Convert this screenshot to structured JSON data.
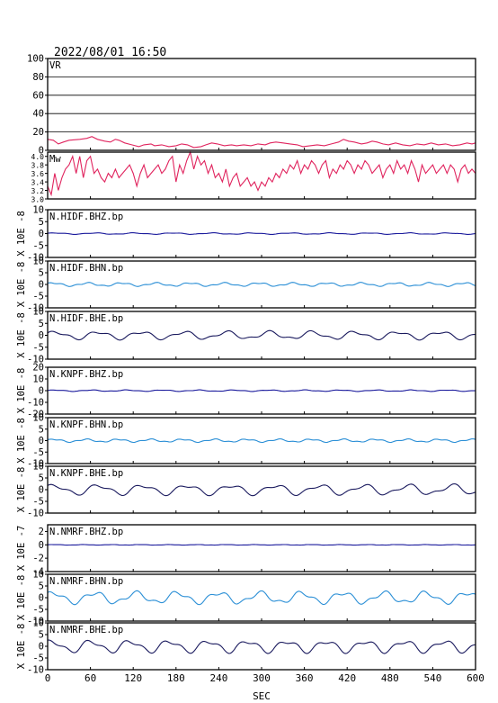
{
  "header": {
    "timestamp": "2022/08/01  16:50"
  },
  "chart_data": {
    "type": "line",
    "x_tick_labels": [
      "0",
      "60",
      "120",
      "180",
      "240",
      "300",
      "360",
      "420",
      "480",
      "540",
      "600"
    ],
    "xlabel": "SEC",
    "xlim": [
      0,
      600
    ],
    "panels": [
      {
        "name": "VR",
        "ylabel": "",
        "ylim": [
          0,
          100
        ],
        "ticks": [
          "0",
          "20",
          "40",
          "60",
          "80",
          "100"
        ],
        "grid": true,
        "color": "#e0245e",
        "series": [
          [
            0,
            12
          ],
          [
            8,
            11
          ],
          [
            15,
            7
          ],
          [
            22,
            9
          ],
          [
            30,
            11
          ],
          [
            45,
            12
          ],
          [
            55,
            13
          ],
          [
            62,
            15
          ],
          [
            70,
            12
          ],
          [
            80,
            10
          ],
          [
            88,
            9
          ],
          [
            95,
            12
          ],
          [
            100,
            11
          ],
          [
            108,
            8
          ],
          [
            118,
            6
          ],
          [
            128,
            4
          ],
          [
            135,
            6
          ],
          [
            145,
            7
          ],
          [
            150,
            5
          ],
          [
            160,
            6
          ],
          [
            170,
            4
          ],
          [
            180,
            5
          ],
          [
            188,
            7
          ],
          [
            196,
            6
          ],
          [
            205,
            3
          ],
          [
            215,
            4
          ],
          [
            222,
            6
          ],
          [
            230,
            8
          ],
          [
            238,
            7
          ],
          [
            248,
            5
          ],
          [
            258,
            6
          ],
          [
            265,
            5
          ],
          [
            275,
            6
          ],
          [
            285,
            5
          ],
          [
            295,
            7
          ],
          [
            305,
            6
          ],
          [
            312,
            8
          ],
          [
            320,
            9
          ],
          [
            330,
            8
          ],
          [
            340,
            7
          ],
          [
            350,
            6
          ],
          [
            358,
            4
          ],
          [
            368,
            5
          ],
          [
            378,
            6
          ],
          [
            388,
            5
          ],
          [
            398,
            7
          ],
          [
            408,
            9
          ],
          [
            415,
            12
          ],
          [
            422,
            10
          ],
          [
            430,
            9
          ],
          [
            440,
            7
          ],
          [
            448,
            8
          ],
          [
            455,
            10
          ],
          [
            462,
            9
          ],
          [
            470,
            7
          ],
          [
            478,
            6
          ],
          [
            488,
            8
          ],
          [
            498,
            6
          ],
          [
            508,
            5
          ],
          [
            518,
            7
          ],
          [
            528,
            6
          ],
          [
            538,
            8
          ],
          [
            548,
            6
          ],
          [
            558,
            7
          ],
          [
            568,
            5
          ],
          [
            578,
            6
          ],
          [
            588,
            8
          ],
          [
            595,
            7
          ],
          [
            600,
            8
          ]
        ]
      },
      {
        "name": "Mw",
        "ylabel": "",
        "ylim": [
          3.0,
          4.1
        ],
        "ticks": [
          "3.0",
          "3.2",
          "3.4",
          "3.6",
          "3.8",
          "4.0"
        ],
        "grid": false,
        "color": "#e0245e",
        "series": [
          [
            0,
            3.3
          ],
          [
            5,
            3.1
          ],
          [
            10,
            3.6
          ],
          [
            15,
            3.2
          ],
          [
            20,
            3.5
          ],
          [
            25,
            3.7
          ],
          [
            30,
            3.8
          ],
          [
            35,
            4.0
          ],
          [
            40,
            3.6
          ],
          [
            45,
            4.0
          ],
          [
            50,
            3.5
          ],
          [
            55,
            3.9
          ],
          [
            60,
            4.0
          ],
          [
            65,
            3.6
          ],
          [
            70,
            3.7
          ],
          [
            75,
            3.5
          ],
          [
            80,
            3.4
          ],
          [
            85,
            3.6
          ],
          [
            90,
            3.5
          ],
          [
            95,
            3.7
          ],
          [
            100,
            3.5
          ],
          [
            105,
            3.6
          ],
          [
            110,
            3.7
          ],
          [
            115,
            3.8
          ],
          [
            120,
            3.6
          ],
          [
            125,
            3.3
          ],
          [
            130,
            3.6
          ],
          [
            135,
            3.8
          ],
          [
            140,
            3.5
          ],
          [
            145,
            3.6
          ],
          [
            150,
            3.7
          ],
          [
            155,
            3.8
          ],
          [
            160,
            3.6
          ],
          [
            165,
            3.7
          ],
          [
            170,
            3.9
          ],
          [
            175,
            4.0
          ],
          [
            180,
            3.4
          ],
          [
            185,
            3.8
          ],
          [
            190,
            3.6
          ],
          [
            195,
            3.9
          ],
          [
            200,
            4.1
          ],
          [
            205,
            3.7
          ],
          [
            210,
            4.0
          ],
          [
            215,
            3.8
          ],
          [
            220,
            3.9
          ],
          [
            225,
            3.6
          ],
          [
            230,
            3.8
          ],
          [
            235,
            3.5
          ],
          [
            240,
            3.6
          ],
          [
            245,
            3.4
          ],
          [
            250,
            3.7
          ],
          [
            255,
            3.3
          ],
          [
            260,
            3.5
          ],
          [
            265,
            3.6
          ],
          [
            270,
            3.3
          ],
          [
            275,
            3.4
          ],
          [
            280,
            3.5
          ],
          [
            285,
            3.3
          ],
          [
            290,
            3.4
          ],
          [
            295,
            3.2
          ],
          [
            300,
            3.4
          ],
          [
            305,
            3.3
          ],
          [
            310,
            3.5
          ],
          [
            315,
            3.4
          ],
          [
            320,
            3.6
          ],
          [
            325,
            3.5
          ],
          [
            330,
            3.7
          ],
          [
            335,
            3.6
          ],
          [
            340,
            3.8
          ],
          [
            345,
            3.7
          ],
          [
            350,
            3.9
          ],
          [
            355,
            3.6
          ],
          [
            360,
            3.8
          ],
          [
            365,
            3.7
          ],
          [
            370,
            3.9
          ],
          [
            375,
            3.8
          ],
          [
            380,
            3.6
          ],
          [
            385,
            3.8
          ],
          [
            390,
            3.9
          ],
          [
            395,
            3.5
          ],
          [
            400,
            3.7
          ],
          [
            405,
            3.6
          ],
          [
            410,
            3.8
          ],
          [
            415,
            3.7
          ],
          [
            420,
            3.9
          ],
          [
            425,
            3.8
          ],
          [
            430,
            3.6
          ],
          [
            435,
            3.8
          ],
          [
            440,
            3.7
          ],
          [
            445,
            3.9
          ],
          [
            450,
            3.8
          ],
          [
            455,
            3.6
          ],
          [
            460,
            3.7
          ],
          [
            465,
            3.8
          ],
          [
            470,
            3.5
          ],
          [
            475,
            3.7
          ],
          [
            480,
            3.8
          ],
          [
            485,
            3.6
          ],
          [
            490,
            3.9
          ],
          [
            495,
            3.7
          ],
          [
            500,
            3.8
          ],
          [
            505,
            3.6
          ],
          [
            510,
            3.9
          ],
          [
            515,
            3.7
          ],
          [
            520,
            3.4
          ],
          [
            525,
            3.8
          ],
          [
            530,
            3.6
          ],
          [
            535,
            3.7
          ],
          [
            540,
            3.8
          ],
          [
            545,
            3.6
          ],
          [
            550,
            3.7
          ],
          [
            555,
            3.8
          ],
          [
            560,
            3.6
          ],
          [
            565,
            3.8
          ],
          [
            570,
            3.7
          ],
          [
            575,
            3.4
          ],
          [
            580,
            3.7
          ],
          [
            585,
            3.8
          ],
          [
            590,
            3.6
          ],
          [
            595,
            3.7
          ],
          [
            600,
            3.6
          ]
        ]
      },
      {
        "name": "N.HIDF.BHZ.bp",
        "ylabel": "X 10E -8",
        "ylim": [
          -10,
          10
        ],
        "ticks": [
          "-10",
          "-5",
          "0",
          "5",
          "10"
        ],
        "grid": false,
        "color": "#1a1a9c",
        "wave": {
          "amp": 0.35,
          "periods": [
            55,
            23
          ],
          "offset": 0.3
        }
      },
      {
        "name": "N.HIDF.BHN.bp",
        "ylabel": "X 10E -8",
        "ylim": [
          -10,
          10
        ],
        "ticks": [
          "-10",
          "-5",
          "0",
          "5",
          "10"
        ],
        "grid": false,
        "color": "#2b8fd6",
        "wave": {
          "amp": 0.9,
          "periods": [
            48,
            19
          ],
          "offset": 0.5
        }
      },
      {
        "name": "N.HIDF.BHE.bp",
        "ylabel": "X 10E -8",
        "ylim": [
          -10,
          10
        ],
        "ticks": [
          "-10",
          "-5",
          "0",
          "5",
          "10"
        ],
        "grid": false,
        "color": "#1a1a5e",
        "wave": {
          "amp": 2.0,
          "periods": [
            60,
            28
          ],
          "offset": 0.4
        }
      },
      {
        "name": "N.KNPF.BHZ.bp",
        "ylabel": "X 10E -8",
        "ylim": [
          -20,
          20
        ],
        "ticks": [
          "-20",
          "-10",
          "0",
          "10",
          "20"
        ],
        "grid": false,
        "color": "#1a1a9c",
        "wave": {
          "amp": 0.7,
          "periods": [
            50,
            21
          ],
          "offset": 0.2
        }
      },
      {
        "name": "N.KNPF.BHN.bp",
        "ylabel": "X 10E -8",
        "ylim": [
          -10,
          10
        ],
        "ticks": [
          "-10",
          "-5",
          "0",
          "5",
          "10"
        ],
        "grid": false,
        "color": "#2b8fd6",
        "wave": {
          "amp": 0.8,
          "periods": [
            45,
            18
          ],
          "offset": 0.3
        }
      },
      {
        "name": "N.KNPF.BHE.bp",
        "ylabel": "X 10E -8",
        "ylim": [
          -10,
          10
        ],
        "ticks": [
          "-10",
          "-5",
          "0",
          "5",
          "10"
        ],
        "grid": false,
        "color": "#1a1a5e",
        "wave": {
          "amp": 2.6,
          "periods": [
            62,
            30
          ],
          "offset": 0.6
        }
      },
      {
        "name": "N.NMRF.BHZ.bp",
        "ylabel": "X 10E -7",
        "ylim": [
          -4,
          3
        ],
        "ticks": [
          "-4",
          "-2",
          "0",
          "2"
        ],
        "grid": false,
        "color": "#1a1a9c",
        "wave": {
          "amp": 0.05,
          "periods": [
            40,
            15
          ],
          "offset": 0.0
        }
      },
      {
        "name": "N.NMRF.BHN.bp",
        "ylabel": "X 10E -8",
        "ylim": [
          -10,
          10
        ],
        "ticks": [
          "-10",
          "-5",
          "0",
          "5",
          "10"
        ],
        "grid": false,
        "color": "#2b8fd6",
        "wave": {
          "amp": 3.0,
          "periods": [
            58,
            25
          ],
          "offset": 0.7
        }
      },
      {
        "name": "N.NMRF.BHE.bp",
        "ylabel": "X 10E -8",
        "ylim": [
          -10,
          10
        ],
        "ticks": [
          "-10",
          "-5",
          "0",
          "5",
          "10"
        ],
        "grid": false,
        "color": "#1a1a5e",
        "wave": {
          "amp": 3.1,
          "periods": [
            55,
            27
          ],
          "offset": 0.9
        }
      }
    ]
  }
}
